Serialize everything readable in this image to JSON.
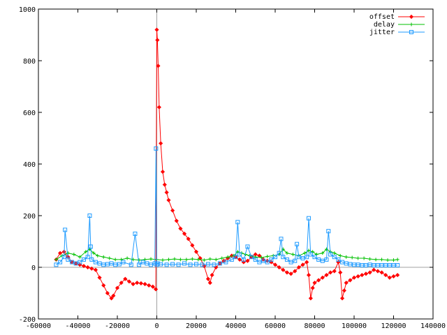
{
  "chart_data": {
    "type": "line",
    "title": "",
    "xlabel": "",
    "ylabel": "",
    "xlim": [
      -60000,
      140000
    ],
    "ylim": [
      -200,
      1000
    ],
    "grid": false,
    "legend_position": "top-right",
    "x_ticks": [
      -60000,
      -40000,
      -20000,
      0,
      20000,
      40000,
      60000,
      80000,
      100000,
      120000,
      140000
    ],
    "y_ticks": [
      -200,
      0,
      200,
      400,
      600,
      800,
      1000
    ],
    "x_tick_labels": [
      "-60000",
      "-40000",
      "-20000",
      "0",
      "20000",
      "40000",
      "60000",
      "80000",
      "100000",
      "120000",
      "140000"
    ],
    "y_tick_labels": [
      "-200",
      "0",
      "200",
      "400",
      "600",
      "800",
      "1000"
    ],
    "zero_axes": true,
    "series": [
      {
        "name": "offset",
        "color": "#ff0000",
        "marker": "diamond",
        "x": [
          -51000,
          -49000,
          -47000,
          -45000,
          -43000,
          -41000,
          -39000,
          -37000,
          -35000,
          -33000,
          -31000,
          -29000,
          -27000,
          -25000,
          -23000,
          -22000,
          -20000,
          -18000,
          -16000,
          -14000,
          -12000,
          -10000,
          -8000,
          -6000,
          -4000,
          -2000,
          -500,
          0,
          300,
          700,
          1200,
          2000,
          3000,
          4000,
          5000,
          6000,
          8000,
          10000,
          12000,
          14000,
          16000,
          18000,
          20000,
          22000,
          24000,
          26000,
          27000,
          28000,
          30000,
          32000,
          34000,
          36000,
          38000,
          40000,
          42000,
          44000,
          46000,
          48000,
          50000,
          52000,
          54000,
          56000,
          58000,
          60000,
          62000,
          64000,
          66000,
          68000,
          70000,
          72000,
          74000,
          76000,
          77000,
          78000,
          79000,
          80000,
          82000,
          84000,
          86000,
          88000,
          90000,
          92000,
          93000,
          94000,
          95000,
          96000,
          98000,
          100000,
          102000,
          104000,
          106000,
          108000,
          110000,
          112000,
          114000,
          116000,
          118000,
          120000,
          122000
        ],
        "y": [
          30,
          55,
          60,
          40,
          20,
          15,
          10,
          5,
          0,
          -5,
          -10,
          -40,
          -70,
          -100,
          -120,
          -110,
          -80,
          -60,
          -45,
          -55,
          -65,
          -60,
          -62,
          -65,
          -70,
          -75,
          -85,
          920,
          880,
          780,
          620,
          480,
          370,
          320,
          290,
          260,
          220,
          180,
          150,
          130,
          110,
          85,
          60,
          35,
          5,
          -45,
          -60,
          -30,
          0,
          15,
          25,
          35,
          45,
          40,
          30,
          20,
          25,
          40,
          50,
          45,
          30,
          25,
          20,
          10,
          0,
          -10,
          -20,
          -25,
          -15,
          0,
          10,
          20,
          -30,
          -120,
          -80,
          -60,
          -50,
          -40,
          -30,
          -20,
          -15,
          20,
          -20,
          -120,
          -90,
          -60,
          -50,
          -40,
          -35,
          -30,
          -25,
          -20,
          -10,
          -15,
          -20,
          -30,
          -40,
          -35,
          -30
        ],
        "show_points": true
      },
      {
        "name": "delay",
        "color": "#00c000",
        "marker": "plus",
        "x": [
          -51000,
          -48000,
          -45000,
          -42000,
          -39000,
          -36000,
          -34000,
          -32000,
          -30000,
          -27000,
          -24000,
          -21000,
          -18000,
          -15000,
          -12000,
          -9000,
          -6000,
          -3000,
          0,
          3000,
          6000,
          9000,
          12000,
          15000,
          18000,
          21000,
          24000,
          27000,
          30000,
          33000,
          36000,
          39000,
          41000,
          43000,
          45000,
          47000,
          50000,
          53000,
          56000,
          59000,
          62000,
          64000,
          66000,
          69000,
          72000,
          75000,
          77000,
          79000,
          81000,
          84000,
          86000,
          88000,
          90000,
          93000,
          96000,
          99000,
          102000,
          105000,
          108000,
          111000,
          114000,
          117000,
          120000,
          122000
        ],
        "y": [
          30,
          45,
          55,
          50,
          40,
          60,
          70,
          55,
          45,
          40,
          35,
          30,
          30,
          35,
          30,
          28,
          30,
          32,
          30,
          28,
          30,
          32,
          30,
          30,
          32,
          30,
          28,
          32,
          30,
          35,
          40,
          45,
          60,
          55,
          50,
          45,
          40,
          38,
          42,
          45,
          50,
          70,
          55,
          50,
          45,
          55,
          65,
          60,
          50,
          55,
          70,
          60,
          55,
          45,
          40,
          38,
          35,
          35,
          32,
          30,
          30,
          28,
          28,
          30
        ],
        "show_points": true
      },
      {
        "name": "jitter",
        "color": "#1e9bff",
        "marker": "square",
        "x": [
          -51000,
          -49000,
          -47000,
          -46500,
          -45000,
          -43000,
          -41000,
          -39000,
          -37000,
          -35000,
          -34000,
          -33500,
          -33000,
          -31000,
          -29000,
          -27000,
          -25000,
          -23000,
          -21000,
          -19000,
          -17000,
          -13000,
          -11000,
          -9000,
          -7000,
          -5000,
          -3000,
          -1000,
          -400,
          0,
          400,
          2000,
          5000,
          8000,
          11000,
          14000,
          17000,
          20000,
          23000,
          26000,
          29000,
          32000,
          35000,
          38000,
          40000,
          41000,
          42000,
          44000,
          46000,
          48000,
          50000,
          52000,
          54000,
          56000,
          58000,
          60000,
          62000,
          63000,
          64000,
          66000,
          68000,
          70000,
          71000,
          72000,
          74000,
          76000,
          77000,
          78000,
          80000,
          82000,
          84000,
          86000,
          87000,
          88000,
          90000,
          92000,
          94000,
          96000,
          98000,
          100000,
          102000,
          104000,
          106000,
          108000,
          110000,
          112000,
          114000,
          116000,
          118000,
          120000,
          122000
        ],
        "y": [
          10,
          20,
          40,
          145,
          30,
          20,
          15,
          20,
          30,
          40,
          200,
          80,
          30,
          20,
          15,
          10,
          12,
          15,
          10,
          12,
          20,
          10,
          130,
          10,
          20,
          15,
          10,
          15,
          460,
          10,
          15,
          12,
          10,
          12,
          10,
          15,
          10,
          12,
          10,
          12,
          10,
          15,
          20,
          30,
          40,
          175,
          50,
          30,
          80,
          40,
          30,
          20,
          25,
          20,
          30,
          40,
          55,
          110,
          40,
          30,
          20,
          25,
          90,
          40,
          35,
          40,
          190,
          50,
          40,
          30,
          25,
          30,
          140,
          50,
          40,
          30,
          20,
          15,
          12,
          10,
          10,
          8,
          8,
          10,
          8,
          8,
          8,
          8,
          8,
          8,
          8
        ],
        "show_points": true
      }
    ]
  }
}
